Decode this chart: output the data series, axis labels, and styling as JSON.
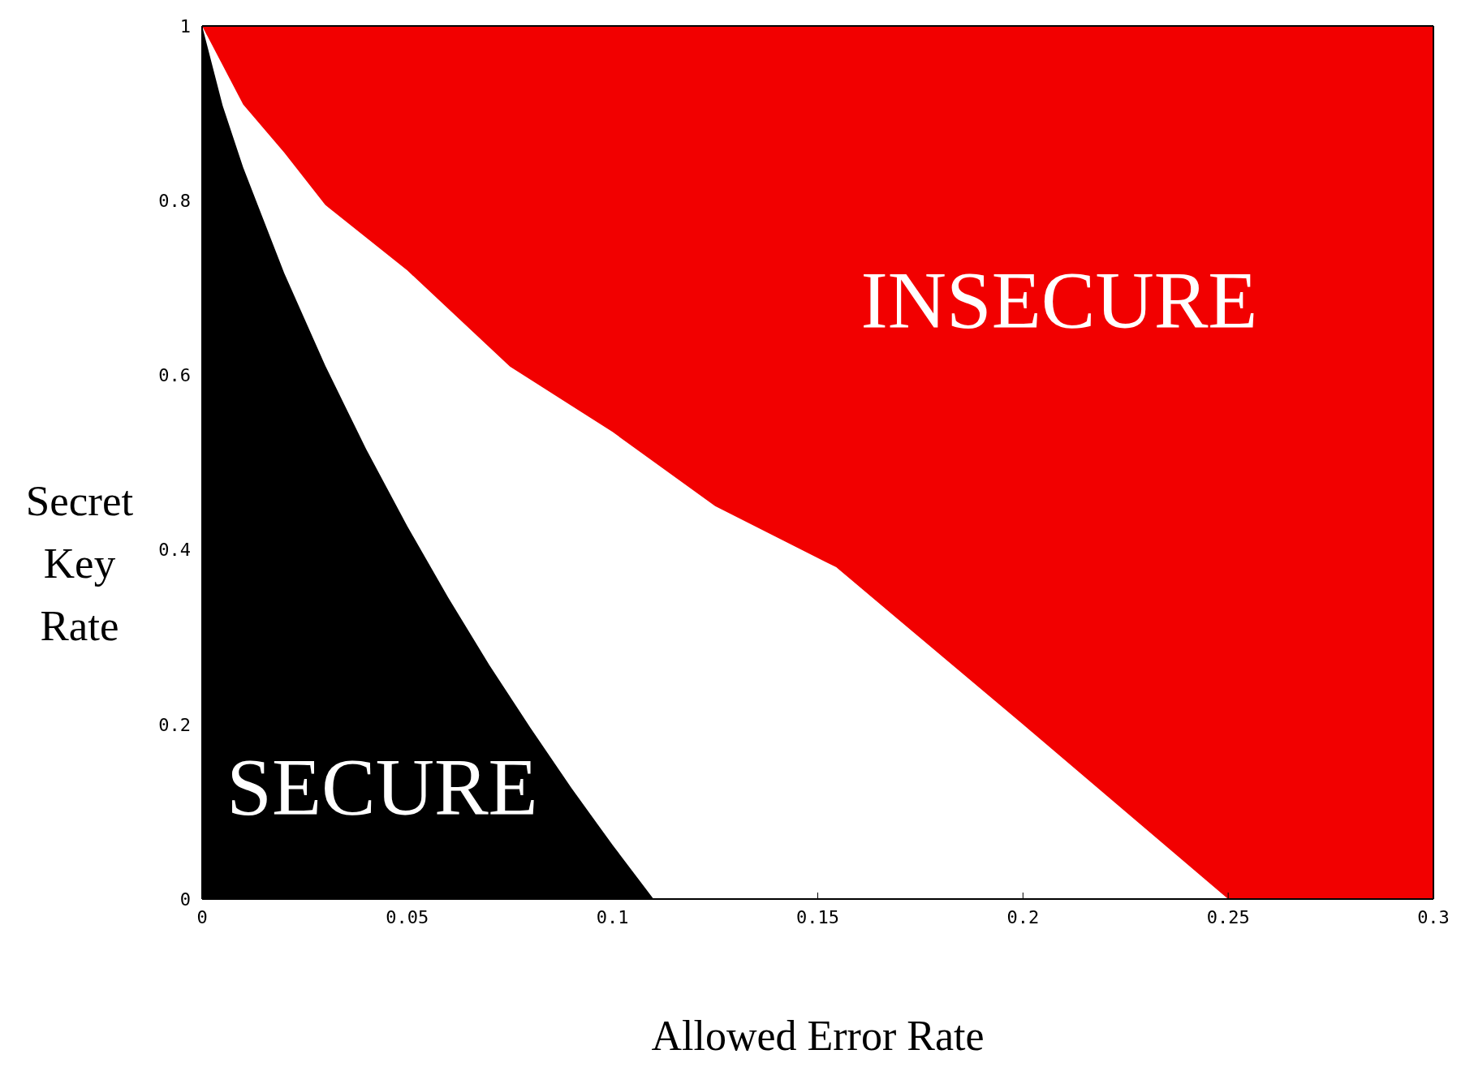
{
  "chart_data": {
    "type": "area",
    "xlabel": "Allowed Error Rate",
    "ylabel": "Secret Key Rate",
    "xlim": [
      0,
      0.3
    ],
    "xticks": [
      0,
      0.05,
      0.1,
      0.15,
      0.2,
      0.25,
      0.3
    ],
    "ylim": [
      0,
      1
    ],
    "yticks": [
      0,
      0.2,
      0.4,
      0.6,
      0.8,
      1
    ],
    "legend": false,
    "bands": [
      {
        "axis": "y",
        "from": 0,
        "to": 1,
        "color": "#f20000"
      }
    ],
    "series": [
      {
        "color": "#ffffff",
        "x": [
          0,
          0.01,
          0.02,
          0.03,
          0.05,
          0.075,
          0.1,
          0.125,
          0.1545,
          0.2,
          0.25
        ],
        "values": [
          1,
          0.91,
          0.855,
          0.795,
          0.72,
          0.61,
          0.535,
          0.45,
          0.38,
          0.2,
          0
        ]
      },
      {
        "color": "#000000",
        "x": [
          0,
          0.005,
          0.01,
          0.02,
          0.03,
          0.04,
          0.05,
          0.06,
          0.07,
          0.08,
          0.09,
          0.1,
          0.11
        ],
        "values": [
          1,
          0.909,
          0.838,
          0.717,
          0.611,
          0.515,
          0.427,
          0.345,
          0.268,
          0.196,
          0.127,
          0.062,
          0
        ]
      }
    ],
    "annotations": [
      "SECURE",
      "INSECURE"
    ]
  }
}
